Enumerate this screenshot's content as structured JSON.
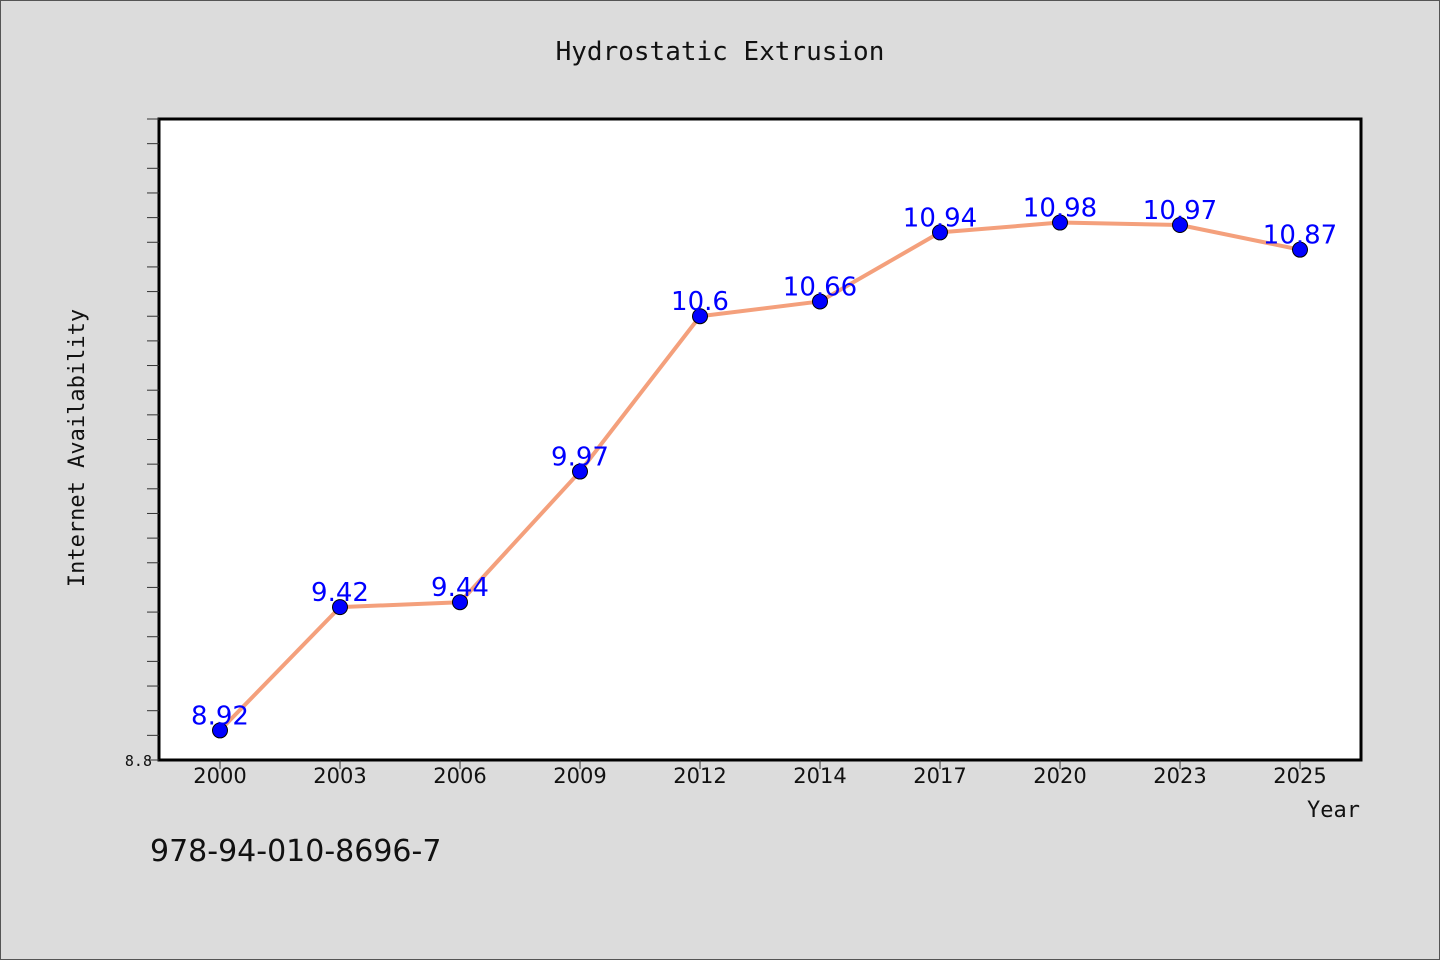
{
  "chart_data": {
    "type": "line",
    "title": "Hydrostatic Extrusion",
    "xlabel": "Year",
    "ylabel": "Internet Availability",
    "x": [
      "2000",
      "2003",
      "2006",
      "2009",
      "2012",
      "2014",
      "2017",
      "2020",
      "2023",
      "2025"
    ],
    "series": [
      {
        "values": [
          8.92,
          9.42,
          9.44,
          9.97,
          10.6,
          10.66,
          10.94,
          10.98,
          10.97,
          10.87
        ],
        "labels": [
          "8.92",
          "9.42",
          "9.44",
          "9.97",
          "10.6",
          "10.66",
          "10.94",
          "10.98",
          "10.97",
          "10.87"
        ],
        "line_color": "#f4a07c",
        "marker_color": "#0000ff"
      }
    ],
    "ylim": [
      8.8,
      11.4
    ],
    "y_tick_label": "8.8",
    "grid": false,
    "legend": "none"
  },
  "footer": {
    "code": "978-94-010-8696-7"
  }
}
